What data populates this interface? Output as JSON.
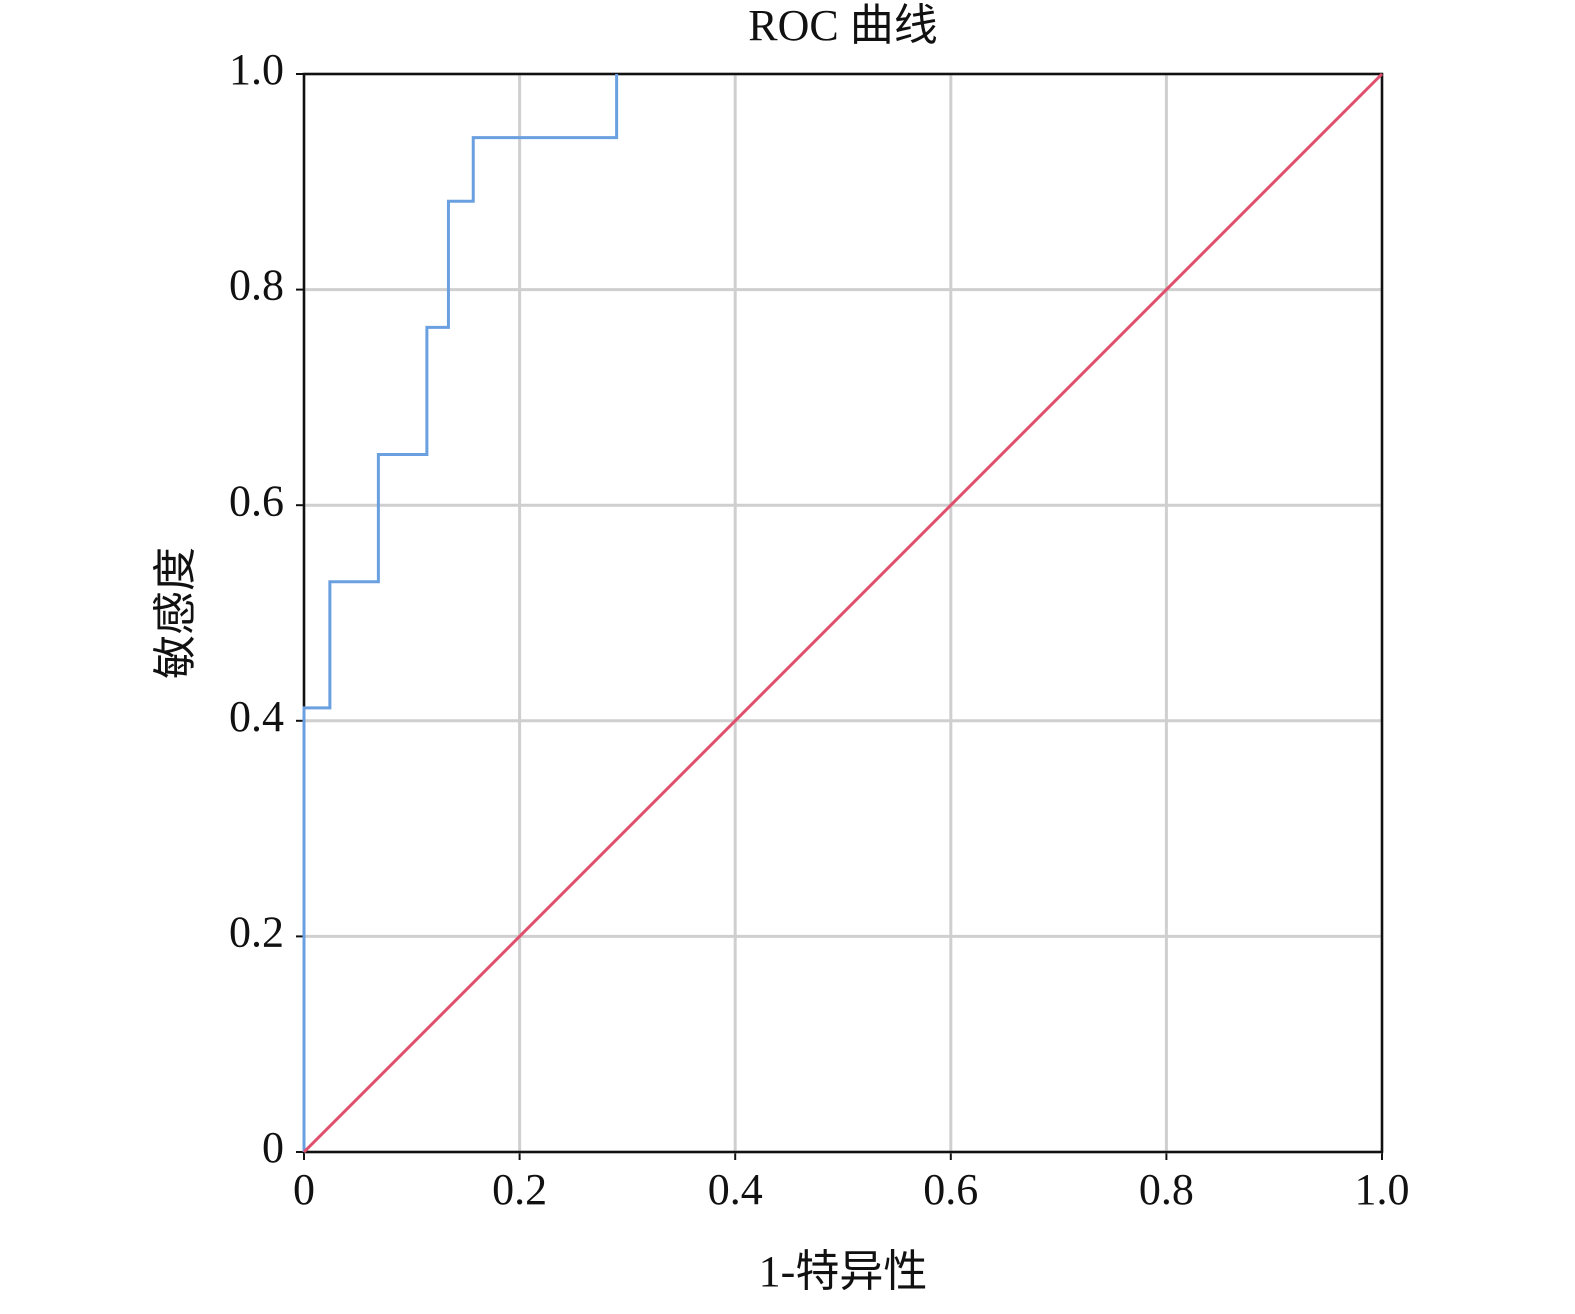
{
  "chart_data": {
    "type": "line",
    "title": "ROC 曲线",
    "x_label": "1-特异性",
    "y_label": "敏感度",
    "xlim": [
      0,
      1
    ],
    "ylim": [
      0,
      1
    ],
    "xticks": [
      0,
      0.2,
      0.4,
      0.6,
      0.8,
      {
        "value": 1,
        "label": "1.0"
      }
    ],
    "yticks": [
      0,
      0.2,
      0.4,
      0.6,
      0.8,
      {
        "value": 1,
        "label": "1.0"
      }
    ],
    "grid": true,
    "series": [
      {
        "color": "#6a9fe0",
        "x": [
          0,
          0,
          0.024,
          0.024,
          0.069,
          0.069,
          0.114,
          0.114,
          0.134,
          0.134,
          0.157,
          0.157,
          0.29,
          0.29
        ],
        "values": [
          0,
          0.412,
          0.412,
          0.529,
          0.529,
          0.647,
          0.647,
          0.765,
          0.765,
          0.882,
          0.882,
          0.941,
          0.941,
          1
        ]
      },
      {
        "color": "#e0506e",
        "x": [
          0,
          1
        ],
        "values": [
          0,
          1
        ]
      }
    ]
  }
}
